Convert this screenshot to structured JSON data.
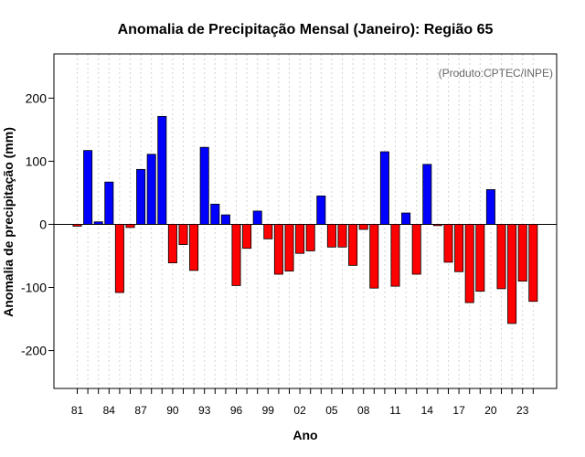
{
  "chart_data": {
    "type": "bar",
    "title": "Anomalia de Precipitação Mensal (Janeiro): Região 65",
    "xlabel": "Ano",
    "ylabel": "Anomalia de precipitação (mm)",
    "annotation": "(Produto:CPTEC/INPE)",
    "ylim": [
      -260,
      270
    ],
    "yticks": [
      -200,
      -100,
      0,
      100,
      200
    ],
    "xtick_labels": [
      "81",
      "84",
      "87",
      "90",
      "93",
      "96",
      "99",
      "02",
      "05",
      "08",
      "11",
      "14",
      "17",
      "20",
      "23"
    ],
    "categories": [
      "1981",
      "1982",
      "1983",
      "1984",
      "1985",
      "1986",
      "1987",
      "1988",
      "1989",
      "1990",
      "1991",
      "1992",
      "1993",
      "1994",
      "1995",
      "1996",
      "1997",
      "1998",
      "1999",
      "2000",
      "2001",
      "2002",
      "2003",
      "2004",
      "2005",
      "2006",
      "2007",
      "2008",
      "2009",
      "2010",
      "2011",
      "2012",
      "2013",
      "2014",
      "2015",
      "2016",
      "2017",
      "2018",
      "2019",
      "2020",
      "2021",
      "2022",
      "2023",
      "2024"
    ],
    "values": [
      -3,
      117,
      4,
      67,
      -108,
      -5,
      87,
      111,
      171,
      -61,
      -32,
      -73,
      122,
      32,
      15,
      -97,
      -38,
      21,
      -23,
      -79,
      -74,
      -46,
      -42,
      45,
      -36,
      -36,
      -65,
      -8,
      -101,
      115,
      -98,
      18,
      -79,
      95,
      -2,
      -60,
      -75,
      -124,
      -106,
      55,
      -102,
      -157,
      -90,
      -122
    ],
    "grid": true,
    "colors": {
      "positive": "#0000ff",
      "negative": "#ff0000",
      "grid": "#d3d3d3",
      "zero_line": "#000000",
      "annotation": "#666666"
    }
  }
}
